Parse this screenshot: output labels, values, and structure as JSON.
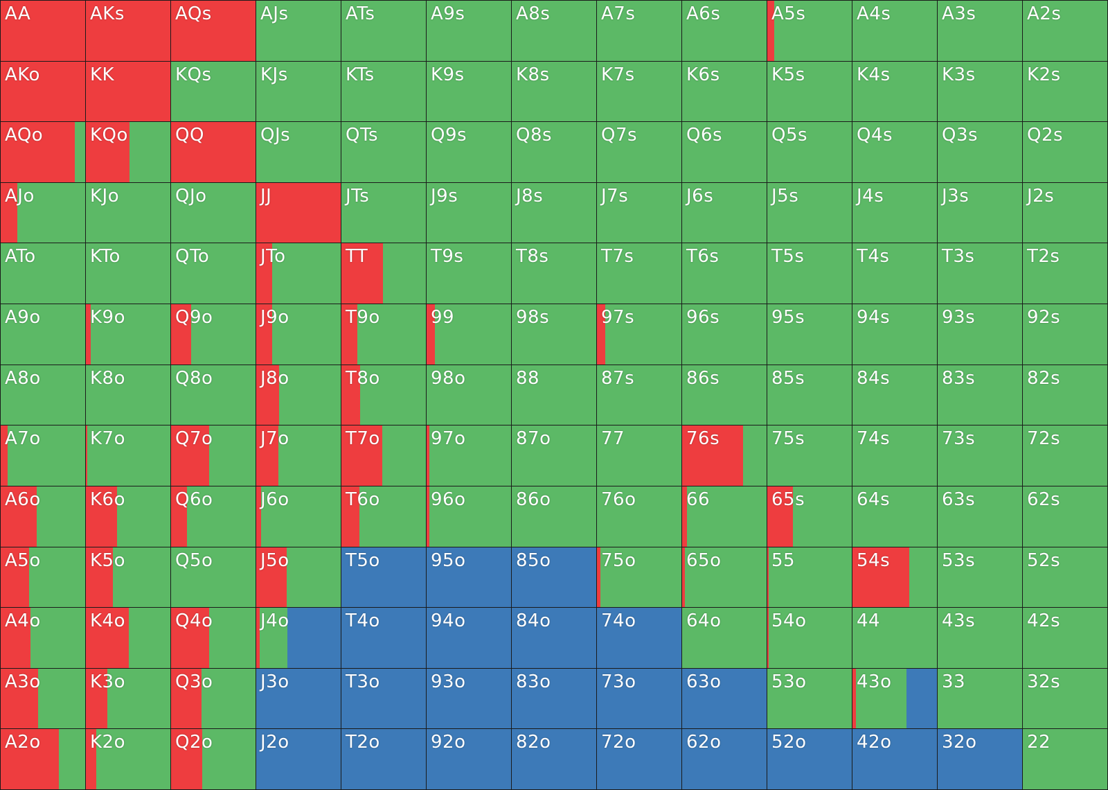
{
  "colors": {
    "raise": "#ee3d3f",
    "call": "#5cb966",
    "fold": "#3d7ab8"
  },
  "grid": [
    [
      [
        "AA",
        [
          1,
          0,
          0
        ]
      ],
      [
        "AKs",
        [
          1,
          0,
          0
        ]
      ],
      [
        "AQs",
        [
          1,
          0,
          0
        ]
      ],
      [
        "AJs",
        [
          0,
          1,
          0
        ]
      ],
      [
        "ATs",
        [
          0,
          1,
          0
        ]
      ],
      [
        "A9s",
        [
          0,
          1,
          0
        ]
      ],
      [
        "A8s",
        [
          0,
          1,
          0
        ]
      ],
      [
        "A7s",
        [
          0,
          1,
          0
        ]
      ],
      [
        "A6s",
        [
          0,
          1,
          0
        ]
      ],
      [
        "A5s",
        [
          0.08,
          0.92,
          0
        ]
      ],
      [
        "A4s",
        [
          0,
          1,
          0
        ]
      ],
      [
        "A3s",
        [
          0,
          1,
          0
        ]
      ],
      [
        "A2s",
        [
          0,
          1,
          0
        ]
      ]
    ],
    [
      [
        "AKo",
        [
          1,
          0,
          0
        ]
      ],
      [
        "KK",
        [
          1,
          0,
          0
        ]
      ],
      [
        "KQs",
        [
          0,
          1,
          0
        ]
      ],
      [
        "KJs",
        [
          0,
          1,
          0
        ]
      ],
      [
        "KTs",
        [
          0,
          1,
          0
        ]
      ],
      [
        "K9s",
        [
          0,
          1,
          0
        ]
      ],
      [
        "K8s",
        [
          0,
          1,
          0
        ]
      ],
      [
        "K7s",
        [
          0,
          1,
          0
        ]
      ],
      [
        "K6s",
        [
          0,
          1,
          0
        ]
      ],
      [
        "K5s",
        [
          0,
          1,
          0
        ]
      ],
      [
        "K4s",
        [
          0,
          1,
          0
        ]
      ],
      [
        "K3s",
        [
          0,
          1,
          0
        ]
      ],
      [
        "K2s",
        [
          0,
          1,
          0
        ]
      ]
    ],
    [
      [
        "AQo",
        [
          0.88,
          0.12,
          0
        ]
      ],
      [
        "KQo",
        [
          0.52,
          0.48,
          0
        ]
      ],
      [
        "QQ",
        [
          1,
          0,
          0
        ]
      ],
      [
        "QJs",
        [
          0,
          1,
          0
        ]
      ],
      [
        "QTs",
        [
          0,
          1,
          0
        ]
      ],
      [
        "Q9s",
        [
          0,
          1,
          0
        ]
      ],
      [
        "Q8s",
        [
          0,
          1,
          0
        ]
      ],
      [
        "Q7s",
        [
          0,
          1,
          0
        ]
      ],
      [
        "Q6s",
        [
          0,
          1,
          0
        ]
      ],
      [
        "Q5s",
        [
          0,
          1,
          0
        ]
      ],
      [
        "Q4s",
        [
          0,
          1,
          0
        ]
      ],
      [
        "Q3s",
        [
          0,
          1,
          0
        ]
      ],
      [
        "Q2s",
        [
          0,
          1,
          0
        ]
      ]
    ],
    [
      [
        "AJo",
        [
          0.2,
          0.8,
          0
        ]
      ],
      [
        "KJo",
        [
          0,
          1,
          0
        ]
      ],
      [
        "QJo",
        [
          0,
          1,
          0
        ]
      ],
      [
        "JJ",
        [
          1,
          0,
          0
        ]
      ],
      [
        "JTs",
        [
          0,
          1,
          0
        ]
      ],
      [
        "J9s",
        [
          0,
          1,
          0
        ]
      ],
      [
        "J8s",
        [
          0,
          1,
          0
        ]
      ],
      [
        "J7s",
        [
          0,
          1,
          0
        ]
      ],
      [
        "J6s",
        [
          0,
          1,
          0
        ]
      ],
      [
        "J5s",
        [
          0,
          1,
          0
        ]
      ],
      [
        "J4s",
        [
          0,
          1,
          0
        ]
      ],
      [
        "J3s",
        [
          0,
          1,
          0
        ]
      ],
      [
        "J2s",
        [
          0,
          1,
          0
        ]
      ]
    ],
    [
      [
        "ATo",
        [
          0,
          1,
          0
        ]
      ],
      [
        "KTo",
        [
          0,
          1,
          0
        ]
      ],
      [
        "QTo",
        [
          0,
          1,
          0
        ]
      ],
      [
        "JTo",
        [
          0.19,
          0.81,
          0
        ]
      ],
      [
        "TT",
        [
          0.49,
          0.51,
          0
        ]
      ],
      [
        "T9s",
        [
          0,
          1,
          0
        ]
      ],
      [
        "T8s",
        [
          0,
          1,
          0
        ]
      ],
      [
        "T7s",
        [
          0,
          1,
          0
        ]
      ],
      [
        "T6s",
        [
          0,
          1,
          0
        ]
      ],
      [
        "T5s",
        [
          0,
          1,
          0
        ]
      ],
      [
        "T4s",
        [
          0,
          1,
          0
        ]
      ],
      [
        "T3s",
        [
          0,
          1,
          0
        ]
      ],
      [
        "T2s",
        [
          0,
          1,
          0
        ]
      ]
    ],
    [
      [
        "A9o",
        [
          0,
          1,
          0
        ]
      ],
      [
        "K9o",
        [
          0.06,
          0.94,
          0
        ]
      ],
      [
        "Q9o",
        [
          0.24,
          0.76,
          0
        ]
      ],
      [
        "J9o",
        [
          0.19,
          0.81,
          0
        ]
      ],
      [
        "T9o",
        [
          0.19,
          0.81,
          0
        ]
      ],
      [
        "99",
        [
          0.1,
          0.9,
          0
        ]
      ],
      [
        "98s",
        [
          0,
          1,
          0
        ]
      ],
      [
        "97s",
        [
          0.1,
          0.9,
          0
        ]
      ],
      [
        "96s",
        [
          0,
          1,
          0
        ]
      ],
      [
        "95s",
        [
          0,
          1,
          0
        ]
      ],
      [
        "94s",
        [
          0,
          1,
          0
        ]
      ],
      [
        "93s",
        [
          0,
          1,
          0
        ]
      ],
      [
        "92s",
        [
          0,
          1,
          0
        ]
      ]
    ],
    [
      [
        "A8o",
        [
          0,
          1,
          0
        ]
      ],
      [
        "K8o",
        [
          0,
          1,
          0
        ]
      ],
      [
        "Q8o",
        [
          0,
          1,
          0
        ]
      ],
      [
        "J8o",
        [
          0.27,
          0.73,
          0
        ]
      ],
      [
        "T8o",
        [
          0.22,
          0.78,
          0
        ]
      ],
      [
        "98o",
        [
          0,
          1,
          0
        ]
      ],
      [
        "88",
        [
          0,
          1,
          0
        ]
      ],
      [
        "87s",
        [
          0,
          1,
          0
        ]
      ],
      [
        "86s",
        [
          0,
          1,
          0
        ]
      ],
      [
        "85s",
        [
          0,
          1,
          0
        ]
      ],
      [
        "84s",
        [
          0,
          1,
          0
        ]
      ],
      [
        "83s",
        [
          0,
          1,
          0
        ]
      ],
      [
        "82s",
        [
          0,
          1,
          0
        ]
      ]
    ],
    [
      [
        "A7o",
        [
          0.08,
          0.92,
          0
        ]
      ],
      [
        "K7o",
        [
          0.02,
          0.98,
          0
        ]
      ],
      [
        "Q7o",
        [
          0.45,
          0.55,
          0
        ]
      ],
      [
        "J7o",
        [
          0.26,
          0.74,
          0
        ]
      ],
      [
        "T7o",
        [
          0.48,
          0.52,
          0
        ]
      ],
      [
        "97o",
        [
          0.03,
          0.97,
          0
        ]
      ],
      [
        "87o",
        [
          0,
          1,
          0
        ]
      ],
      [
        "77",
        [
          0,
          1,
          0
        ]
      ],
      [
        "76s",
        [
          0.72,
          0.28,
          0
        ]
      ],
      [
        "75s",
        [
          0,
          1,
          0
        ]
      ],
      [
        "74s",
        [
          0,
          1,
          0
        ]
      ],
      [
        "73s",
        [
          0,
          1,
          0
        ]
      ],
      [
        "72s",
        [
          0,
          1,
          0
        ]
      ]
    ],
    [
      [
        "A6o",
        [
          0.43,
          0.57,
          0
        ]
      ],
      [
        "K6o",
        [
          0.37,
          0.63,
          0
        ]
      ],
      [
        "Q6o",
        [
          0.19,
          0.81,
          0
        ]
      ],
      [
        "J6o",
        [
          0.06,
          0.94,
          0
        ]
      ],
      [
        "T6o",
        [
          0.21,
          0.79,
          0
        ]
      ],
      [
        "96o",
        [
          0.03,
          0.97,
          0
        ]
      ],
      [
        "86o",
        [
          0,
          1,
          0
        ]
      ],
      [
        "76o",
        [
          0,
          1,
          0
        ]
      ],
      [
        "66",
        [
          0.06,
          0.94,
          0
        ]
      ],
      [
        "65s",
        [
          0.3,
          0.7,
          0
        ]
      ],
      [
        "64s",
        [
          0,
          1,
          0
        ]
      ],
      [
        "63s",
        [
          0,
          1,
          0
        ]
      ],
      [
        "62s",
        [
          0,
          1,
          0
        ]
      ]
    ],
    [
      [
        "A5o",
        [
          0.34,
          0.66,
          0
        ]
      ],
      [
        "K5o",
        [
          0.32,
          0.68,
          0
        ]
      ],
      [
        "Q5o",
        [
          0,
          1,
          0
        ]
      ],
      [
        "J5o",
        [
          0.36,
          0.64,
          0
        ]
      ],
      [
        "T5o",
        [
          0,
          0,
          1
        ]
      ],
      [
        "95o",
        [
          0,
          0,
          1
        ]
      ],
      [
        "85o",
        [
          0,
          0,
          1
        ]
      ],
      [
        "75o",
        [
          0.04,
          0.96,
          0
        ]
      ],
      [
        "65o",
        [
          0.03,
          0.97,
          0
        ]
      ],
      [
        "55",
        [
          0.02,
          0.98,
          0
        ]
      ],
      [
        "54s",
        [
          0.67,
          0.33,
          0
        ]
      ],
      [
        "53s",
        [
          0,
          1,
          0
        ]
      ],
      [
        "52s",
        [
          0,
          1,
          0
        ]
      ]
    ],
    [
      [
        "A4o",
        [
          0.35,
          0.65,
          0
        ]
      ],
      [
        "K4o",
        [
          0.51,
          0.49,
          0
        ]
      ],
      [
        "Q4o",
        [
          0.45,
          0.55,
          0
        ]
      ],
      [
        "J4o",
        [
          0.04,
          0.33,
          0.63
        ]
      ],
      [
        "T4o",
        [
          0,
          0,
          1
        ]
      ],
      [
        "94o",
        [
          0,
          0,
          1
        ]
      ],
      [
        "84o",
        [
          0,
          0,
          1
        ]
      ],
      [
        "74o",
        [
          0,
          0,
          1
        ]
      ],
      [
        "64o",
        [
          0,
          1,
          0
        ]
      ],
      [
        "54o",
        [
          0.02,
          0.98,
          0
        ]
      ],
      [
        "44",
        [
          0,
          1,
          0
        ]
      ],
      [
        "43s",
        [
          0,
          1,
          0
        ]
      ],
      [
        "42s",
        [
          0,
          1,
          0
        ]
      ]
    ],
    [
      [
        "A3o",
        [
          0.44,
          0.56,
          0
        ]
      ],
      [
        "K3o",
        [
          0.25,
          0.75,
          0
        ]
      ],
      [
        "Q3o",
        [
          0.36,
          0.64,
          0
        ]
      ],
      [
        "J3o",
        [
          0,
          0,
          1
        ]
      ],
      [
        "T3o",
        [
          0,
          0,
          1
        ]
      ],
      [
        "93o",
        [
          0,
          0,
          1
        ]
      ],
      [
        "83o",
        [
          0,
          0,
          1
        ]
      ],
      [
        "73o",
        [
          0,
          0,
          1
        ]
      ],
      [
        "63o",
        [
          0,
          0,
          1
        ]
      ],
      [
        "53o",
        [
          0,
          1,
          0
        ]
      ],
      [
        "43o",
        [
          0.04,
          0.6,
          0.36
        ]
      ],
      [
        "33",
        [
          0,
          1,
          0
        ]
      ],
      [
        "32s",
        [
          0,
          1,
          0
        ]
      ]
    ],
    [
      [
        "A2o",
        [
          0.69,
          0.31,
          0
        ]
      ],
      [
        "K2o",
        [
          0.12,
          0.88,
          0
        ]
      ],
      [
        "Q2o",
        [
          0.37,
          0.63,
          0
        ]
      ],
      [
        "J2o",
        [
          0,
          0,
          1
        ]
      ],
      [
        "T2o",
        [
          0,
          0,
          1
        ]
      ],
      [
        "92o",
        [
          0,
          0,
          1
        ]
      ],
      [
        "82o",
        [
          0,
          0,
          1
        ]
      ],
      [
        "72o",
        [
          0,
          0,
          1
        ]
      ],
      [
        "62o",
        [
          0,
          0,
          1
        ]
      ],
      [
        "52o",
        [
          0,
          0,
          1
        ]
      ],
      [
        "42o",
        [
          0,
          0,
          1
        ]
      ],
      [
        "32o",
        [
          0,
          0,
          1
        ]
      ],
      [
        "22",
        [
          0,
          1,
          0
        ]
      ]
    ]
  ]
}
